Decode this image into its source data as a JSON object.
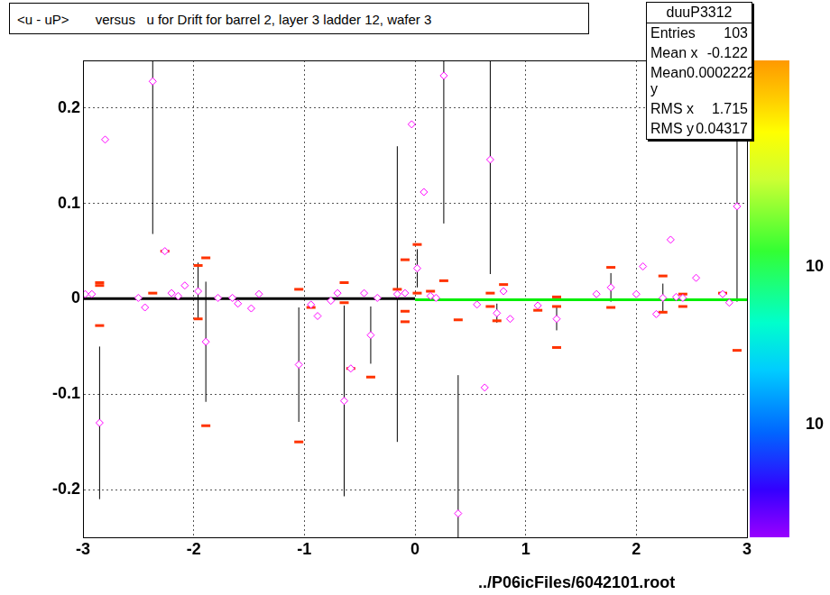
{
  "chart_data": {
    "type": "scatter",
    "title": "<u - uP>       versus   u for Drift for barrel 2, layer 3 ladder 12, wafer 3",
    "annotation": "../P06icFiles/6042101.root",
    "xlim": [
      -3,
      3
    ],
    "ylim": [
      -0.25,
      0.25
    ],
    "xticks": [
      -3,
      -2,
      -1,
      0,
      1,
      2,
      3
    ],
    "yticks": [
      -0.2,
      -0.1,
      0,
      0.1,
      0.2
    ],
    "grid": true,
    "stats": {
      "title": "duuP3312",
      "rows": [
        {
          "label": "Entries",
          "value": 103
        },
        {
          "label": "Mean x",
          "value": -0.122
        },
        {
          "label": "Mean y",
          "value": 0.0002222
        },
        {
          "label": "RMS x",
          "value": 1.715
        },
        {
          "label": "RMS y",
          "value": 0.04317
        }
      ]
    },
    "colorbar_labels": [
      "10",
      "10"
    ],
    "series": [
      {
        "type": "scatter",
        "color": "#ff00ff",
        "marker": "diamond",
        "x": [
          -2.98,
          -2.92,
          -2.85,
          -2.8,
          -2.5,
          -2.44,
          -2.37,
          -2.26,
          -2.2,
          -2.14,
          -2.08,
          -1.96,
          -1.89,
          -1.78,
          -1.65,
          -1.6,
          -1.48,
          -1.41,
          -1.05,
          -0.94,
          -0.88,
          -0.76,
          -0.7,
          -0.64,
          -0.58,
          -0.46,
          -0.4,
          -0.34,
          -0.16,
          -0.09,
          -0.03,
          0.02,
          0.08,
          0.14,
          0.19,
          0.26,
          0.39,
          0.56,
          0.63,
          0.68,
          0.74,
          0.8,
          0.86,
          1.11,
          1.28,
          1.64,
          1.77,
          2.0,
          2.06,
          2.18,
          2.24,
          2.31,
          2.36,
          2.42,
          2.54,
          2.78,
          2.84,
          2.91
        ],
        "values": [
          0.005,
          0.005,
          -0.13,
          0.167,
          0.001,
          -0.009,
          0.228,
          0.05,
          0.006,
          0.003,
          0.014,
          0.008,
          -0.045,
          0.001,
          0.001,
          -0.005,
          -0.01,
          0.005,
          -0.069,
          -0.006,
          -0.018,
          -0.002,
          0.006,
          -0.107,
          -0.073,
          0.006,
          -0.038,
          0.001,
          0.005,
          0.006,
          0.183,
          0.032,
          0.112,
          0.003,
          0.001,
          0.234,
          -0.225,
          -0.006,
          -0.093,
          0.146,
          -0.015,
          0.008,
          -0.021,
          -0.007,
          -0.021,
          0.005,
          0.012,
          0.005,
          0.034,
          -0.016,
          0.001,
          0.062,
          0.002,
          0.001,
          0.022,
          0.005,
          -0.004,
          0.097
        ],
        "errors": [
          0,
          0,
          0.08,
          0,
          0,
          0,
          0.16,
          0,
          0,
          0,
          0,
          0.03,
          0.063,
          0,
          0,
          0,
          0,
          0,
          0.06,
          0,
          0,
          0,
          0,
          0.1,
          0,
          0,
          0.03,
          0,
          0.155,
          0,
          0,
          0.02,
          0,
          0,
          0,
          0.155,
          0.145,
          0,
          0,
          0.12,
          0.01,
          0,
          0,
          0,
          0.012,
          0,
          0.015,
          0,
          0,
          0,
          0.015,
          0,
          0,
          0,
          0,
          0,
          0,
          0.1
        ]
      },
      {
        "type": "scatter",
        "color": "#ff3300",
        "marker": "dash",
        "x": [
          -2.85,
          -2.85,
          -2.85,
          -2.37,
          -2.26,
          -1.96,
          -1.96,
          -1.89,
          -1.89,
          -1.05,
          -1.05,
          -0.94,
          -0.64,
          -0.64,
          -0.58,
          -0.4,
          -0.16,
          -0.09,
          -0.09,
          -0.09,
          0.02,
          0.02,
          0.14,
          0.26,
          0.39,
          0.68,
          0.68,
          0.74,
          0.8,
          1.11,
          1.28,
          1.28,
          1.28,
          1.77,
          1.77,
          2.24,
          2.24,
          2.42,
          2.42,
          2.78,
          2.91
        ],
        "values": [
          0.014,
          0.017,
          -0.028,
          0.006,
          0.05,
          0.035,
          -0.021,
          0.043,
          -0.133,
          0.01,
          -0.15,
          -0.009,
          0.017,
          -0.004,
          -0.073,
          -0.082,
          0.01,
          0.041,
          -0.024,
          -0.013,
          0.057,
          0.006,
          0.008,
          0.019,
          -0.022,
          0.006,
          -0.008,
          -0.023,
          0.015,
          -0.012,
          0.002,
          -0.051,
          -0.008,
          0.033,
          -0.009,
          0.024,
          -0.014,
          -0.008,
          0.005,
          0.006,
          -0.054
        ]
      },
      {
        "type": "line",
        "color": "#000000",
        "line_style": "solid",
        "x": [
          -3,
          0
        ],
        "values": [
          0.0003,
          0.0003
        ]
      },
      {
        "type": "line",
        "color": "#00ee00",
        "line_style": "solid",
        "x": [
          0,
          3
        ],
        "values": [
          -0.001,
          -0.001
        ]
      }
    ]
  }
}
